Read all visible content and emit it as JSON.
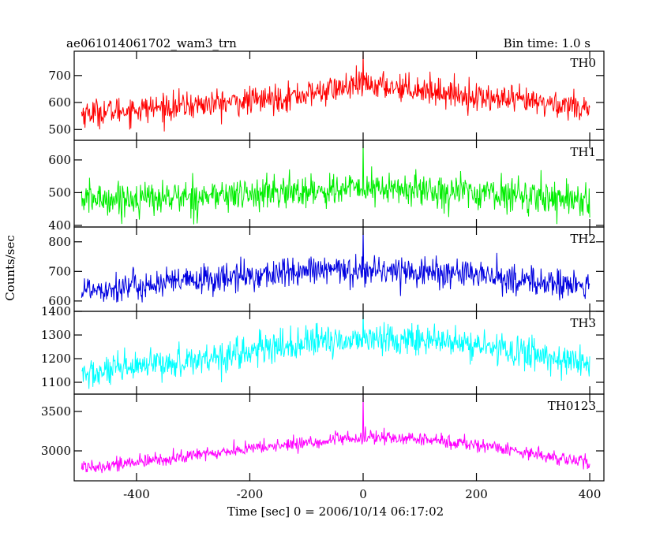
{
  "chart_data": {
    "type": "line",
    "title": "ae061014061702_wam3_trn",
    "subtitle": "Bin time: 1.0 s",
    "xlabel": "Time [sec] 0 = 2006/10/14 06:17:02",
    "ylabel": "Counts/sec",
    "xlim": [
      -510,
      425
    ],
    "x_ticks": [
      -400,
      -200,
      0,
      200,
      400
    ],
    "grid": false,
    "legend": "none",
    "x_range": [
      -497,
      400
    ],
    "series": [
      {
        "name": "TH0",
        "color": "#ff0000",
        "ylim": [
          460,
          790
        ],
        "y_ticks": [
          500,
          600,
          700
        ],
        "baseline": {
          "x": [
            -497,
            -400,
            -300,
            -200,
            -100,
            -50,
            0,
            50,
            100,
            200,
            300,
            400
          ],
          "y": [
            560,
            575,
            590,
            605,
            630,
            650,
            665,
            660,
            650,
            620,
            600,
            585
          ]
        },
        "noise": 32,
        "spike": {
          "x": 0,
          "y": 790
        }
      },
      {
        "name": "TH1",
        "color": "#00ee00",
        "ylim": [
          395,
          660
        ],
        "y_ticks": [
          400,
          500,
          600
        ],
        "baseline": {
          "x": [
            -497,
            -400,
            -300,
            -200,
            -100,
            0,
            100,
            200,
            300,
            400
          ],
          "y": [
            480,
            482,
            488,
            495,
            505,
            512,
            508,
            500,
            490,
            478
          ]
        },
        "noise": 32,
        "spike": {
          "x": 0,
          "y": 660
        }
      },
      {
        "name": "TH2",
        "color": "#0000e0",
        "ylim": [
          565,
          850
        ],
        "y_ticks": [
          600,
          700,
          800
        ],
        "baseline": {
          "x": [
            -497,
            -400,
            -300,
            -200,
            -100,
            0,
            100,
            200,
            300,
            400
          ],
          "y": [
            640,
            650,
            668,
            685,
            700,
            705,
            700,
            688,
            665,
            648
          ]
        },
        "noise": 32,
        "spike": {
          "x": 0,
          "y": 850
        }
      },
      {
        "name": "TH3",
        "color": "#00ffff",
        "ylim": [
          1050,
          1400
        ],
        "y_ticks": [
          1100,
          1200,
          1300,
          1400
        ],
        "baseline": {
          "x": [
            -497,
            -400,
            -300,
            -200,
            -100,
            0,
            100,
            200,
            300,
            400
          ],
          "y": [
            1130,
            1160,
            1195,
            1230,
            1265,
            1285,
            1280,
            1255,
            1220,
            1175
          ]
        },
        "noise": 42,
        "spike": {
          "x": 0,
          "y": 1400
        }
      },
      {
        "name": "TH0123",
        "color": "#ff00ff",
        "ylim": [
          2620,
          3720
        ],
        "y_ticks": [
          3000,
          3500
        ],
        "baseline": {
          "x": [
            -497,
            -400,
            -300,
            -200,
            -100,
            0,
            100,
            200,
            300,
            400
          ],
          "y": [
            2800,
            2850,
            2940,
            3030,
            3100,
            3170,
            3150,
            3080,
            2970,
            2840
          ]
        },
        "noise": 55,
        "spike": {
          "x": 0,
          "y": 3720
        }
      }
    ]
  }
}
